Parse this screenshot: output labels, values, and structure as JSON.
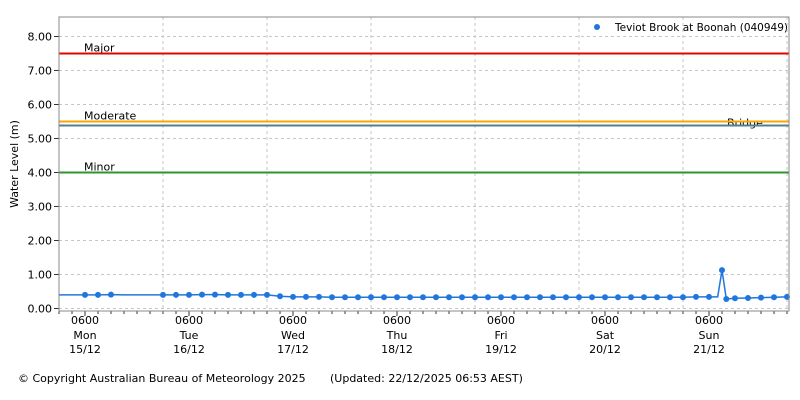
{
  "legend": {
    "label": "Teviot Brook at Boonah (040949)"
  },
  "footer": {
    "copyright": "© Copyright Australian Bureau of Meteorology 2025",
    "updated": "(Updated: 22/12/2025 06:53 AEST)"
  },
  "colors": {
    "background": "#ffffff",
    "grid": "#c6c6c6",
    "border": "#888888",
    "tick": "#333333",
    "text": "#000000"
  },
  "chart_data": {
    "type": "line",
    "title": "",
    "ylabel": "Water Level (m)",
    "unit": "m",
    "ylim": [
      0,
      8.5
    ],
    "grid": "on",
    "legend_position": "top-right",
    "yticks": [
      0,
      1,
      2,
      3,
      4,
      5,
      6,
      7,
      8
    ],
    "ytick_labels": [
      "0.00",
      "1.00",
      "2.00",
      "3.00",
      "4.00",
      "5.00",
      "6.00",
      "7.00",
      "8.00"
    ],
    "x_axis": {
      "start": "Mon 15/12 0000",
      "end": "Mon 22/12 0000",
      "minor_tick_hours": 3,
      "days": [
        {
          "time": "0600",
          "day": "Mon",
          "date": "15/12"
        },
        {
          "time": "0600",
          "day": "Tue",
          "date": "16/12"
        },
        {
          "time": "0600",
          "day": "Wed",
          "date": "17/12"
        },
        {
          "time": "0600",
          "day": "Thu",
          "date": "18/12"
        },
        {
          "time": "0600",
          "day": "Fri",
          "date": "19/12"
        },
        {
          "time": "0600",
          "day": "Sat",
          "date": "20/12"
        },
        {
          "time": "0600",
          "day": "Sun",
          "date": "21/12"
        }
      ]
    },
    "thresholds": [
      {
        "name": "Major",
        "value": 7.5,
        "color": "#e60000",
        "label_side": "left"
      },
      {
        "name": "Moderate",
        "value": 5.5,
        "color": "#ffa500",
        "label_side": "left"
      },
      {
        "name": "Bridge",
        "value": 5.38,
        "color": "#4e8096",
        "label_side": "right"
      },
      {
        "name": "Minor",
        "value": 4.0,
        "color": "#2e942e",
        "label_side": "left"
      }
    ],
    "series": [
      {
        "name": "Teviot Brook at Boonah (040949)",
        "color": "#2176dd",
        "start_time": "Mon 15/12 0000",
        "points_format": [
          "hours_since_start",
          "water_level_m",
          "marker_visible"
        ],
        "points": [
          [
            0,
            0.4,
            0
          ],
          [
            3,
            0.4,
            0
          ],
          [
            6,
            0.4,
            1
          ],
          [
            9,
            0.4,
            1
          ],
          [
            12,
            0.41,
            1
          ],
          [
            15,
            0.4,
            0
          ],
          [
            18,
            0.4,
            0
          ],
          [
            21,
            0.4,
            0
          ],
          [
            24,
            0.4,
            1
          ],
          [
            27,
            0.4,
            1
          ],
          [
            30,
            0.4,
            1
          ],
          [
            33,
            0.41,
            1
          ],
          [
            36,
            0.41,
            1
          ],
          [
            39,
            0.4,
            1
          ],
          [
            42,
            0.4,
            1
          ],
          [
            45,
            0.4,
            1
          ],
          [
            48,
            0.4,
            1
          ],
          [
            51,
            0.36,
            1
          ],
          [
            54,
            0.34,
            1
          ],
          [
            57,
            0.34,
            1
          ],
          [
            60,
            0.34,
            1
          ],
          [
            63,
            0.33,
            1
          ],
          [
            66,
            0.33,
            1
          ],
          [
            69,
            0.33,
            1
          ],
          [
            72,
            0.33,
            1
          ],
          [
            75,
            0.33,
            1
          ],
          [
            78,
            0.33,
            1
          ],
          [
            81,
            0.33,
            1
          ],
          [
            84,
            0.33,
            1
          ],
          [
            87,
            0.33,
            1
          ],
          [
            90,
            0.33,
            1
          ],
          [
            93,
            0.33,
            1
          ],
          [
            96,
            0.33,
            1
          ],
          [
            99,
            0.33,
            1
          ],
          [
            102,
            0.33,
            1
          ],
          [
            105,
            0.33,
            1
          ],
          [
            108,
            0.33,
            1
          ],
          [
            111,
            0.33,
            1
          ],
          [
            114,
            0.33,
            1
          ],
          [
            117,
            0.33,
            1
          ],
          [
            120,
            0.33,
            1
          ],
          [
            123,
            0.33,
            1
          ],
          [
            126,
            0.33,
            1
          ],
          [
            129,
            0.33,
            1
          ],
          [
            132,
            0.33,
            1
          ],
          [
            135,
            0.33,
            1
          ],
          [
            138,
            0.33,
            1
          ],
          [
            141,
            0.33,
            1
          ],
          [
            144,
            0.33,
            1
          ],
          [
            147,
            0.34,
            1
          ],
          [
            150,
            0.34,
            1
          ],
          [
            152,
            0.34,
            0
          ],
          [
            153,
            1.13,
            1
          ],
          [
            154,
            0.28,
            1
          ],
          [
            156,
            0.3,
            1
          ],
          [
            159,
            0.31,
            1
          ],
          [
            162,
            0.32,
            1
          ],
          [
            165,
            0.33,
            1
          ],
          [
            168,
            0.34,
            1
          ]
        ]
      }
    ]
  }
}
